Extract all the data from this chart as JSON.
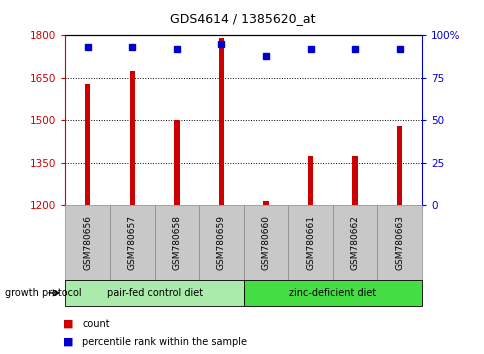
{
  "title": "GDS4614 / 1385620_at",
  "samples": [
    "GSM780656",
    "GSM780657",
    "GSM780658",
    "GSM780659",
    "GSM780660",
    "GSM780661",
    "GSM780662",
    "GSM780663"
  ],
  "counts": [
    1630,
    1675,
    1500,
    1790,
    1215,
    1375,
    1375,
    1480
  ],
  "percentiles": [
    93,
    93,
    92,
    95,
    88,
    92,
    92,
    92
  ],
  "ylim_left": [
    1200,
    1800
  ],
  "ylim_right": [
    0,
    100
  ],
  "yticks_left": [
    1200,
    1350,
    1500,
    1650,
    1800
  ],
  "yticks_right": [
    0,
    25,
    50,
    75,
    100
  ],
  "group1_label": "pair-fed control diet",
  "group2_label": "zinc-deficient diet",
  "group1_indices": [
    0,
    1,
    2,
    3
  ],
  "group2_indices": [
    4,
    5,
    6,
    7
  ],
  "bar_color": "#cc0000",
  "dot_color": "#0000cc",
  "group1_color": "#aaeaaa",
  "group2_color": "#44dd44",
  "bg_color": "#c8c8c8",
  "xlabel_protocol": "growth protocol",
  "legend_count": "count",
  "legend_pct": "percentile rank within the sample",
  "title_color": "#000000",
  "left_axis_color": "#cc0000",
  "right_axis_color": "#0000cc",
  "bar_width": 0.12,
  "dot_size": 5
}
